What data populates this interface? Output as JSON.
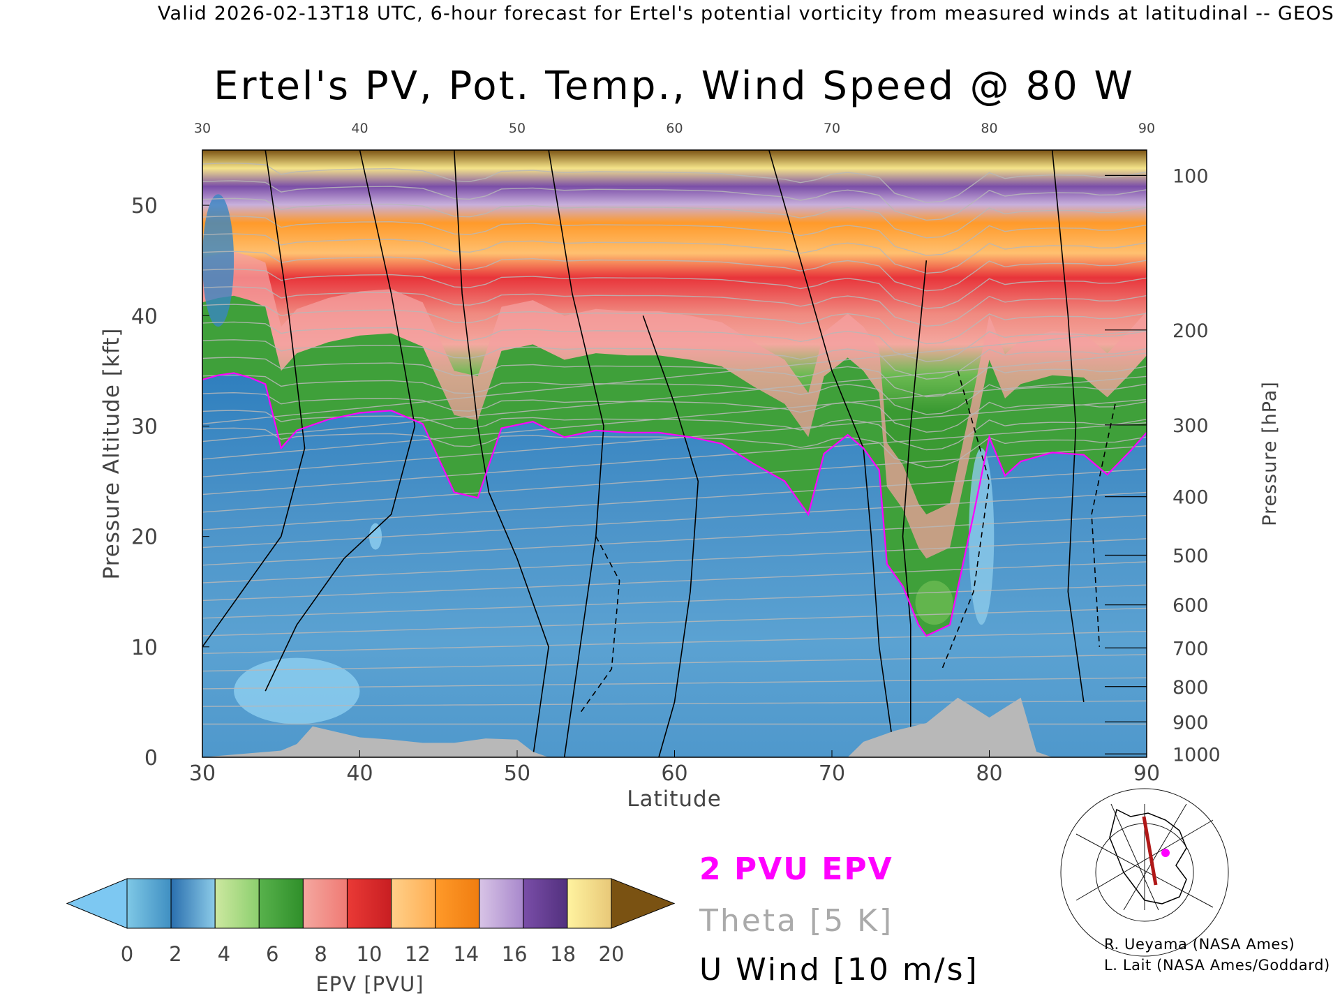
{
  "header": {
    "valid_line": "Valid 2026-02-13T18 UTC, 6-hour forecast for Ertel's potential vorticity from measured winds at latitudinal -- GEOS"
  },
  "chart_data": {
    "type": "heatmap",
    "title": "Ertel's PV, Pot. Temp., Wind Speed @ 80 W",
    "xlabel": "Latitude",
    "ylabel_left": "Pressure Altitude [kft]",
    "ylabel_right": "Pressure [hPa]",
    "xlim": [
      30,
      90
    ],
    "ylim": [
      0,
      55
    ],
    "x_ticks": [
      30,
      40,
      50,
      60,
      70,
      80,
      90
    ],
    "y_ticks": [
      0,
      10,
      20,
      30,
      40,
      50
    ],
    "pressure_ticks": [
      {
        "label": "100",
        "kft": 52.7
      },
      {
        "label": "200",
        "kft": 38.7
      },
      {
        "label": "300",
        "kft": 30.1
      },
      {
        "label": "400",
        "kft": 23.6
      },
      {
        "label": "500",
        "kft": 18.3
      },
      {
        "label": "600",
        "kft": 13.8
      },
      {
        "label": "700",
        "kft": 9.9
      },
      {
        "label": "800",
        "kft": 6.4
      },
      {
        "label": "900",
        "kft": 3.2
      },
      {
        "label": "1000",
        "kft": 0.3
      }
    ],
    "epv_colorbar": {
      "label": "EPV [PVU]",
      "ticks": [
        "0",
        "2",
        "4",
        "6",
        "8",
        "10",
        "12",
        "14",
        "16",
        "18",
        "20"
      ],
      "colors": [
        [
          "#7fc8e6",
          "#3f8fc2"
        ],
        [
          "#2a6fae",
          "#8ccbe8"
        ],
        [
          "#cde8a0",
          "#8ccf6e"
        ],
        [
          "#58b24c",
          "#2f8f2a"
        ],
        [
          "#f4a8a0",
          "#f07a74"
        ],
        [
          "#ea3a36",
          "#c81e22"
        ],
        [
          "#ffd08a",
          "#ffae52"
        ],
        [
          "#ff9a2a",
          "#f07d10"
        ],
        [
          "#d8c4e6",
          "#a888cc"
        ],
        [
          "#7a4ea8",
          "#52307e"
        ],
        [
          "#fff3a0",
          "#e8c878"
        ]
      ],
      "under_color": "#7dc8f2",
      "over_color": "#7a5212"
    },
    "tropopause_2pvu_kft": [
      [
        30.0,
        34.2
      ],
      [
        31.0,
        34.6
      ],
      [
        32.0,
        34.8
      ],
      [
        33.0,
        34.4
      ],
      [
        34.0,
        33.8
      ],
      [
        35.0,
        28.0
      ],
      [
        36.0,
        29.6
      ],
      [
        38.0,
        30.6
      ],
      [
        40.0,
        31.2
      ],
      [
        42.0,
        31.4
      ],
      [
        44.0,
        30.2
      ],
      [
        46.0,
        24.0
      ],
      [
        47.5,
        23.5
      ],
      [
        49.0,
        29.8
      ],
      [
        51.0,
        30.4
      ],
      [
        53.0,
        29.0
      ],
      [
        55.0,
        29.6
      ],
      [
        57.0,
        29.4
      ],
      [
        59.0,
        29.4
      ],
      [
        61.0,
        29.0
      ],
      [
        63.0,
        28.4
      ],
      [
        65.0,
        26.6
      ],
      [
        67.0,
        25.0
      ],
      [
        68.5,
        22.0
      ],
      [
        69.5,
        27.5
      ],
      [
        71.0,
        29.2
      ],
      [
        72.0,
        28.0
      ],
      [
        73.0,
        26.0
      ],
      [
        73.5,
        17.5
      ],
      [
        74.5,
        15.5
      ],
      [
        75.5,
        12.0
      ],
      [
        76.0,
        11.0
      ],
      [
        77.5,
        12.0
      ],
      [
        79.0,
        22.0
      ],
      [
        80.0,
        29.0
      ],
      [
        81.0,
        25.5
      ],
      [
        82.0,
        26.8
      ],
      [
        84.0,
        27.6
      ],
      [
        86.0,
        27.4
      ],
      [
        87.5,
        25.6
      ],
      [
        89.0,
        27.8
      ],
      [
        90.0,
        29.4
      ]
    ],
    "u_wind_contours_ms": [
      "-10",
      "0",
      "10",
      "30"
    ],
    "theta_contours_K": [
      "280",
      "290",
      "370",
      "380",
      "400",
      "420"
    ],
    "terrain_kft": [
      [
        30,
        0
      ],
      [
        35,
        0.6
      ],
      [
        36,
        1.2
      ],
      [
        37,
        2.8
      ],
      [
        40,
        1.8
      ],
      [
        42,
        1.6
      ],
      [
        44,
        1.3
      ],
      [
        46,
        1.3
      ],
      [
        48,
        1.7
      ],
      [
        50,
        1.6
      ],
      [
        51,
        0.5
      ],
      [
        52,
        0
      ],
      [
        71,
        0
      ],
      [
        72,
        1.4
      ],
      [
        74,
        2.4
      ],
      [
        76,
        3.1
      ],
      [
        78,
        5.4
      ],
      [
        80,
        3.6
      ],
      [
        82,
        5.4
      ],
      [
        83,
        0.5
      ],
      [
        84,
        0
      ]
    ],
    "map_inset": {
      "section_line": "80 W",
      "marker": "magenta dot"
    }
  },
  "legend": {
    "pv_line": "2 PVU EPV",
    "theta": "Theta [5 K]",
    "uwind": "U Wind [10 m/s]",
    "colors": {
      "pv": "#ff00ff",
      "theta": "#aaaaaa",
      "uwind": "#000000"
    }
  },
  "credits": {
    "line1": "R. Ueyama (NASA Ames)",
    "line2": "L. Lait (NASA Ames/Goddard)"
  }
}
